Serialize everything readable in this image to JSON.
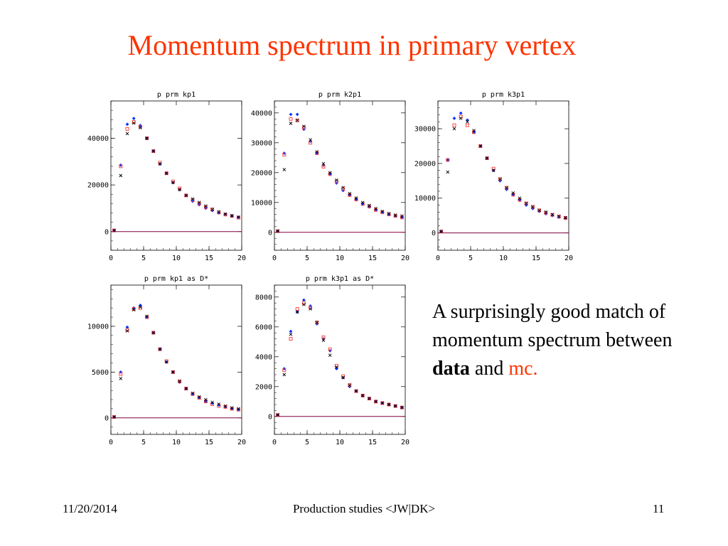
{
  "slide": {
    "title": "Momentum spectrum in primary vertex",
    "text_pre": "A surprisingly good match of momentum spectrum between ",
    "text_bold": "data",
    "text_mid": " and ",
    "text_mc": "mc.",
    "footer_date": "11/20/2014",
    "footer_center": "Production studies <JW|DK>",
    "footer_page": "11"
  },
  "colors": {
    "data_series": "#0033ff",
    "mc_series_a": "#ff3333",
    "mc_series_b": "#000000",
    "baseline": "#800040"
  },
  "chart_data": [
    {
      "type": "scatter",
      "title": "p prm kp1",
      "xlim": [
        0,
        20
      ],
      "ylim": [
        -8000,
        56000
      ],
      "xticks": [
        0,
        5,
        10,
        15,
        20
      ],
      "yticks": [
        0,
        20000,
        40000
      ],
      "x": [
        0.5,
        1.5,
        2.5,
        3.5,
        4.5,
        5.5,
        6.5,
        7.5,
        8.5,
        9.5,
        10.5,
        11.5,
        12.5,
        13.5,
        14.5,
        15.5,
        16.5,
        17.5,
        18.5,
        19.5
      ],
      "series": [
        {
          "marker": "diamond",
          "values": [
            600,
            28500,
            46000,
            48500,
            45500,
            40000,
            34500,
            29000,
            25000,
            21000,
            18000,
            15500,
            13000,
            11500,
            10000,
            9000,
            8000,
            7500,
            6700,
            6200
          ]
        },
        {
          "marker": "square",
          "values": [
            500,
            28000,
            44000,
            47000,
            45000,
            40000,
            34500,
            29500,
            25000,
            21500,
            18500,
            15500,
            13500,
            12000,
            10500,
            9500,
            8200,
            7300,
            6700,
            6000
          ]
        },
        {
          "marker": "cross",
          "values": [
            400,
            24000,
            42000,
            46500,
            44500,
            40000,
            34500,
            29000,
            25000,
            21000,
            18000,
            15500,
            14000,
            12500,
            11000,
            9500,
            8500,
            7500,
            6800,
            6200
          ]
        }
      ]
    },
    {
      "type": "scatter",
      "title": "p prm k2p1",
      "xlim": [
        0,
        20
      ],
      "ylim": [
        -6000,
        44000
      ],
      "xticks": [
        0,
        5,
        10,
        15,
        20
      ],
      "yticks": [
        0,
        10000,
        20000,
        30000,
        40000
      ],
      "x": [
        0.5,
        1.5,
        2.5,
        3.5,
        4.5,
        5.5,
        6.5,
        7.5,
        8.5,
        9.5,
        10.5,
        11.5,
        12.5,
        13.5,
        14.5,
        15.5,
        16.5,
        17.5,
        18.5,
        19.5
      ],
      "series": [
        {
          "marker": "diamond",
          "values": [
            400,
            26500,
            39500,
            39500,
            34500,
            30500,
            26500,
            22500,
            19500,
            16500,
            14000,
            12500,
            11000,
            9500,
            8500,
            7500,
            6800,
            6000,
            5500,
            5000
          ]
        },
        {
          "marker": "square",
          "values": [
            400,
            26000,
            38000,
            37500,
            35000,
            30000,
            26500,
            22000,
            19500,
            17000,
            14500,
            12500,
            11000,
            9500,
            8700,
            7500,
            6700,
            6000,
            5500,
            5000
          ]
        },
        {
          "marker": "cross",
          "values": [
            400,
            21000,
            36500,
            37500,
            35500,
            31000,
            27000,
            23000,
            20000,
            17500,
            15000,
            13000,
            11500,
            10000,
            9000,
            8000,
            7000,
            6300,
            5800,
            5500
          ]
        }
      ]
    },
    {
      "type": "scatter",
      "title": "p prm k3p1",
      "xlim": [
        0,
        20
      ],
      "ylim": [
        -5000,
        38000
      ],
      "xticks": [
        0,
        5,
        10,
        15,
        20
      ],
      "yticks": [
        0,
        10000,
        20000,
        30000
      ],
      "x": [
        0.5,
        1.5,
        2.5,
        3.5,
        4.5,
        5.5,
        6.5,
        7.5,
        8.5,
        9.5,
        10.5,
        11.5,
        12.5,
        13.5,
        14.5,
        15.5,
        16.5,
        17.5,
        18.5,
        19.5
      ],
      "series": [
        {
          "marker": "diamond",
          "values": [
            400,
            21000,
            33000,
            34500,
            32500,
            29000,
            25000,
            21500,
            18000,
            15000,
            12500,
            11000,
            9500,
            8000,
            7000,
            6200,
            5500,
            5000,
            4500,
            4200
          ]
        },
        {
          "marker": "square",
          "values": [
            400,
            21000,
            31000,
            33500,
            31000,
            29000,
            25000,
            21500,
            18500,
            15500,
            13000,
            11000,
            9500,
            8500,
            7500,
            6500,
            5800,
            5200,
            4700,
            4300
          ]
        },
        {
          "marker": "cross",
          "values": [
            400,
            17500,
            30000,
            33000,
            32000,
            29500,
            25000,
            21500,
            18000,
            15500,
            13000,
            11500,
            10000,
            8500,
            7500,
            6500,
            6000,
            5300,
            4800,
            4400
          ]
        }
      ]
    },
    {
      "type": "scatter",
      "title": "p prm kp1 as D*",
      "xlim": [
        0,
        20
      ],
      "ylim": [
        -1800,
        14500
      ],
      "xticks": [
        0,
        5,
        10,
        15,
        20
      ],
      "yticks": [
        0,
        5000,
        10000
      ],
      "x": [
        0.5,
        1.5,
        2.5,
        3.5,
        4.5,
        5.5,
        6.5,
        7.5,
        8.5,
        9.5,
        10.5,
        11.5,
        12.5,
        13.5,
        14.5,
        15.5,
        16.5,
        17.5,
        18.5,
        19.5
      ],
      "series": [
        {
          "marker": "diamond",
          "values": [
            100,
            5000,
            9900,
            12000,
            12300,
            11000,
            9300,
            7500,
            6100,
            5000,
            3900,
            3200,
            2600,
            2200,
            1800,
            1600,
            1400,
            1200,
            1000,
            900
          ]
        },
        {
          "marker": "square",
          "values": [
            100,
            4800,
            9600,
            11900,
            12000,
            11000,
            9300,
            7500,
            6200,
            5000,
            4000,
            3200,
            2600,
            2200,
            1800,
            1500,
            1300,
            1200,
            1000,
            900
          ]
        },
        {
          "marker": "cross",
          "values": [
            100,
            4300,
            9500,
            11800,
            12100,
            11100,
            9300,
            7500,
            6100,
            5000,
            4000,
            3200,
            2700,
            2300,
            2000,
            1700,
            1500,
            1300,
            1100,
            1000
          ]
        }
      ]
    },
    {
      "type": "scatter",
      "title": "p prm k3p1 as D*",
      "xlim": [
        0,
        20
      ],
      "ylim": [
        -1200,
        8800
      ],
      "xticks": [
        0,
        5,
        10,
        15,
        20
      ],
      "yticks": [
        0,
        2000,
        4000,
        6000,
        8000
      ],
      "x": [
        0.5,
        1.5,
        2.5,
        3.5,
        4.5,
        5.5,
        6.5,
        7.5,
        8.5,
        9.5,
        10.5,
        11.5,
        12.5,
        13.5,
        14.5,
        15.5,
        16.5,
        17.5,
        18.5,
        19.5
      ],
      "series": [
        {
          "marker": "diamond",
          "values": [
            100,
            3200,
            5700,
            7000,
            7800,
            7400,
            6200,
            5200,
            4400,
            3200,
            2600,
            2000,
            1700,
            1400,
            1200,
            1000,
            900,
            800,
            700,
            600
          ]
        },
        {
          "marker": "square",
          "values": [
            100,
            3100,
            5200,
            7200,
            7600,
            7300,
            6300,
            5300,
            4500,
            3400,
            2700,
            2100,
            1700,
            1400,
            1200,
            1000,
            900,
            800,
            700,
            600
          ]
        },
        {
          "marker": "cross",
          "values": [
            100,
            2800,
            5500,
            7000,
            7500,
            7200,
            6300,
            5100,
            4100,
            3300,
            2600,
            2100,
            1700,
            1400,
            1200,
            1000,
            900,
            800,
            700,
            600
          ]
        }
      ]
    }
  ]
}
